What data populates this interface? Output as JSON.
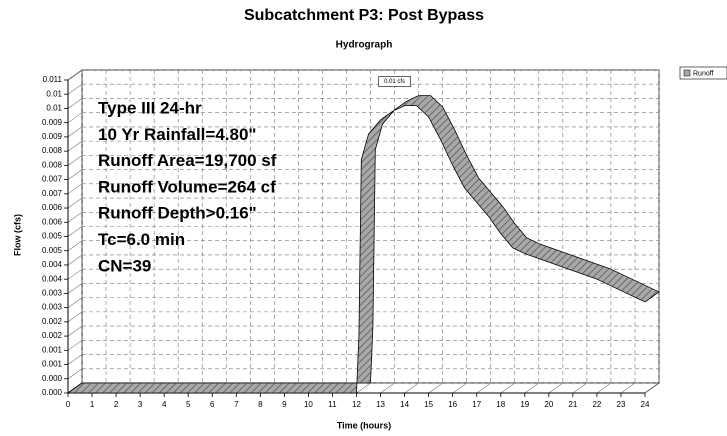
{
  "chart_data": {
    "type": "line",
    "title": "Subcatchment P3: Post Bypass",
    "subtitle": "Hydrograph",
    "x_label": "Time (hours)",
    "y_label": "Flow (cfs)",
    "x": [
      0,
      12.0,
      12.1,
      12.2,
      12.5,
      13.0,
      13.5,
      14.0,
      14.5,
      15.0,
      15.5,
      16.0,
      16.5,
      17.0,
      17.5,
      18.0,
      18.5,
      19.0,
      20.0,
      21.0,
      22.0,
      23.0,
      24.0
    ],
    "series": [
      {
        "name": "Runoff",
        "color": "#a8a8a8",
        "values": [
          0,
          0,
          0.002,
          0.0082,
          0.0091,
          0.0096,
          0.0099,
          0.0101,
          0.0101,
          0.0097,
          0.0089,
          0.008,
          0.0072,
          0.0067,
          0.0062,
          0.0056,
          0.0051,
          0.0049,
          0.0046,
          0.0043,
          0.004,
          0.0036,
          0.0032
        ]
      }
    ],
    "peak_label": "0.01 cfs",
    "annotations": [
      "Type III 24-hr",
      "10 Yr Rainfall=4.80\"",
      "Runoff Area=19,700 sf",
      "Runoff Volume=264 cf",
      "Runoff Depth>0.16\"",
      "Tc=6.0 min",
      "CN=39"
    ],
    "xlim": [
      0,
      24
    ],
    "xticks": [
      0,
      1,
      2,
      3,
      4,
      5,
      6,
      7,
      8,
      9,
      10,
      11,
      12,
      13,
      14,
      15,
      16,
      17,
      18,
      19,
      20,
      21,
      22,
      23,
      24
    ],
    "ylim": [
      0,
      0.011
    ],
    "yticks": [
      {
        "value": 0,
        "label": "0.000"
      },
      {
        "value": 0.0005,
        "label": "0.000"
      },
      {
        "value": 0.001,
        "label": "0.001"
      },
      {
        "value": 0.0015,
        "label": "0.001"
      },
      {
        "value": 0.002,
        "label": "0.002"
      },
      {
        "value": 0.0025,
        "label": "0.002"
      },
      {
        "value": 0.003,
        "label": "0.003"
      },
      {
        "value": 0.0035,
        "label": "0.003"
      },
      {
        "value": 0.004,
        "label": "0.004"
      },
      {
        "value": 0.0045,
        "label": "0.004"
      },
      {
        "value": 0.005,
        "label": "0.005"
      },
      {
        "value": 0.0055,
        "label": "0.005"
      },
      {
        "value": 0.006,
        "label": "0.006"
      },
      {
        "value": 0.0065,
        "label": "0.006"
      },
      {
        "value": 0.007,
        "label": "0.007"
      },
      {
        "value": 0.0075,
        "label": "0.007"
      },
      {
        "value": 0.008,
        "label": "0.008"
      },
      {
        "value": 0.0085,
        "label": "0.008"
      },
      {
        "value": 0.009,
        "label": "0.009"
      },
      {
        "value": 0.0095,
        "label": "0.009"
      },
      {
        "value": 0.01,
        "label": "0.01"
      },
      {
        "value": 0.0105,
        "label": "0.01"
      },
      {
        "value": 0.011,
        "label": "0.011"
      }
    ],
    "grid": true,
    "legend": "top-right"
  }
}
